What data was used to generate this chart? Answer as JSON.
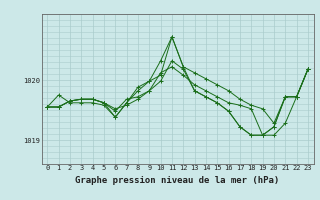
{
  "title": "Graphe pression niveau de la mer (hPa)",
  "bg_color": "#cce8e8",
  "grid_color": "#aacccc",
  "line_color": "#1a6e1a",
  "ylim": [
    1018.6,
    1021.1
  ],
  "yticks": [
    1019.0,
    1020.0
  ],
  "xlim": [
    -0.5,
    23.5
  ],
  "xticks": [
    0,
    1,
    2,
    3,
    4,
    5,
    6,
    7,
    8,
    9,
    10,
    11,
    12,
    13,
    14,
    15,
    16,
    17,
    18,
    19,
    20,
    21,
    22,
    23
  ],
  "series": [
    [
      1019.55,
      1019.55,
      1019.65,
      1019.68,
      1019.68,
      1019.62,
      1019.48,
      1019.68,
      1019.72,
      1019.82,
      1020.12,
      1020.22,
      1020.08,
      1019.92,
      1019.82,
      1019.72,
      1019.62,
      1019.58,
      1019.52,
      1019.08,
      1019.08,
      1019.28,
      1019.72,
      1020.18
    ],
    [
      1019.55,
      1019.55,
      1019.65,
      1019.68,
      1019.68,
      1019.62,
      1019.52,
      1019.58,
      1019.68,
      1019.82,
      1019.98,
      1020.32,
      1020.18,
      1019.82,
      1019.72,
      1019.62,
      1019.48,
      1019.22,
      1019.08,
      1019.08,
      1019.22,
      1019.72,
      1019.72,
      1020.18
    ],
    [
      1019.55,
      1019.75,
      1019.62,
      1019.62,
      1019.62,
      1019.58,
      1019.38,
      1019.62,
      1019.82,
      1019.98,
      1020.32,
      1020.72,
      1020.22,
      1020.12,
      1020.02,
      1019.92,
      1019.82,
      1019.68,
      1019.58,
      1019.52,
      1019.28,
      1019.72,
      1019.72,
      1020.18
    ],
    [
      1019.55,
      1019.55,
      1019.65,
      1019.68,
      1019.68,
      1019.62,
      1019.38,
      1019.62,
      1019.88,
      1019.98,
      1020.08,
      1020.72,
      1020.22,
      1019.82,
      1019.72,
      1019.62,
      1019.48,
      1019.22,
      1019.08,
      1019.08,
      1019.22,
      1019.72,
      1019.72,
      1020.18
    ]
  ],
  "title_fontsize": 6.5,
  "tick_fontsize": 5.0,
  "figsize": [
    3.2,
    2.0
  ],
  "dpi": 100
}
